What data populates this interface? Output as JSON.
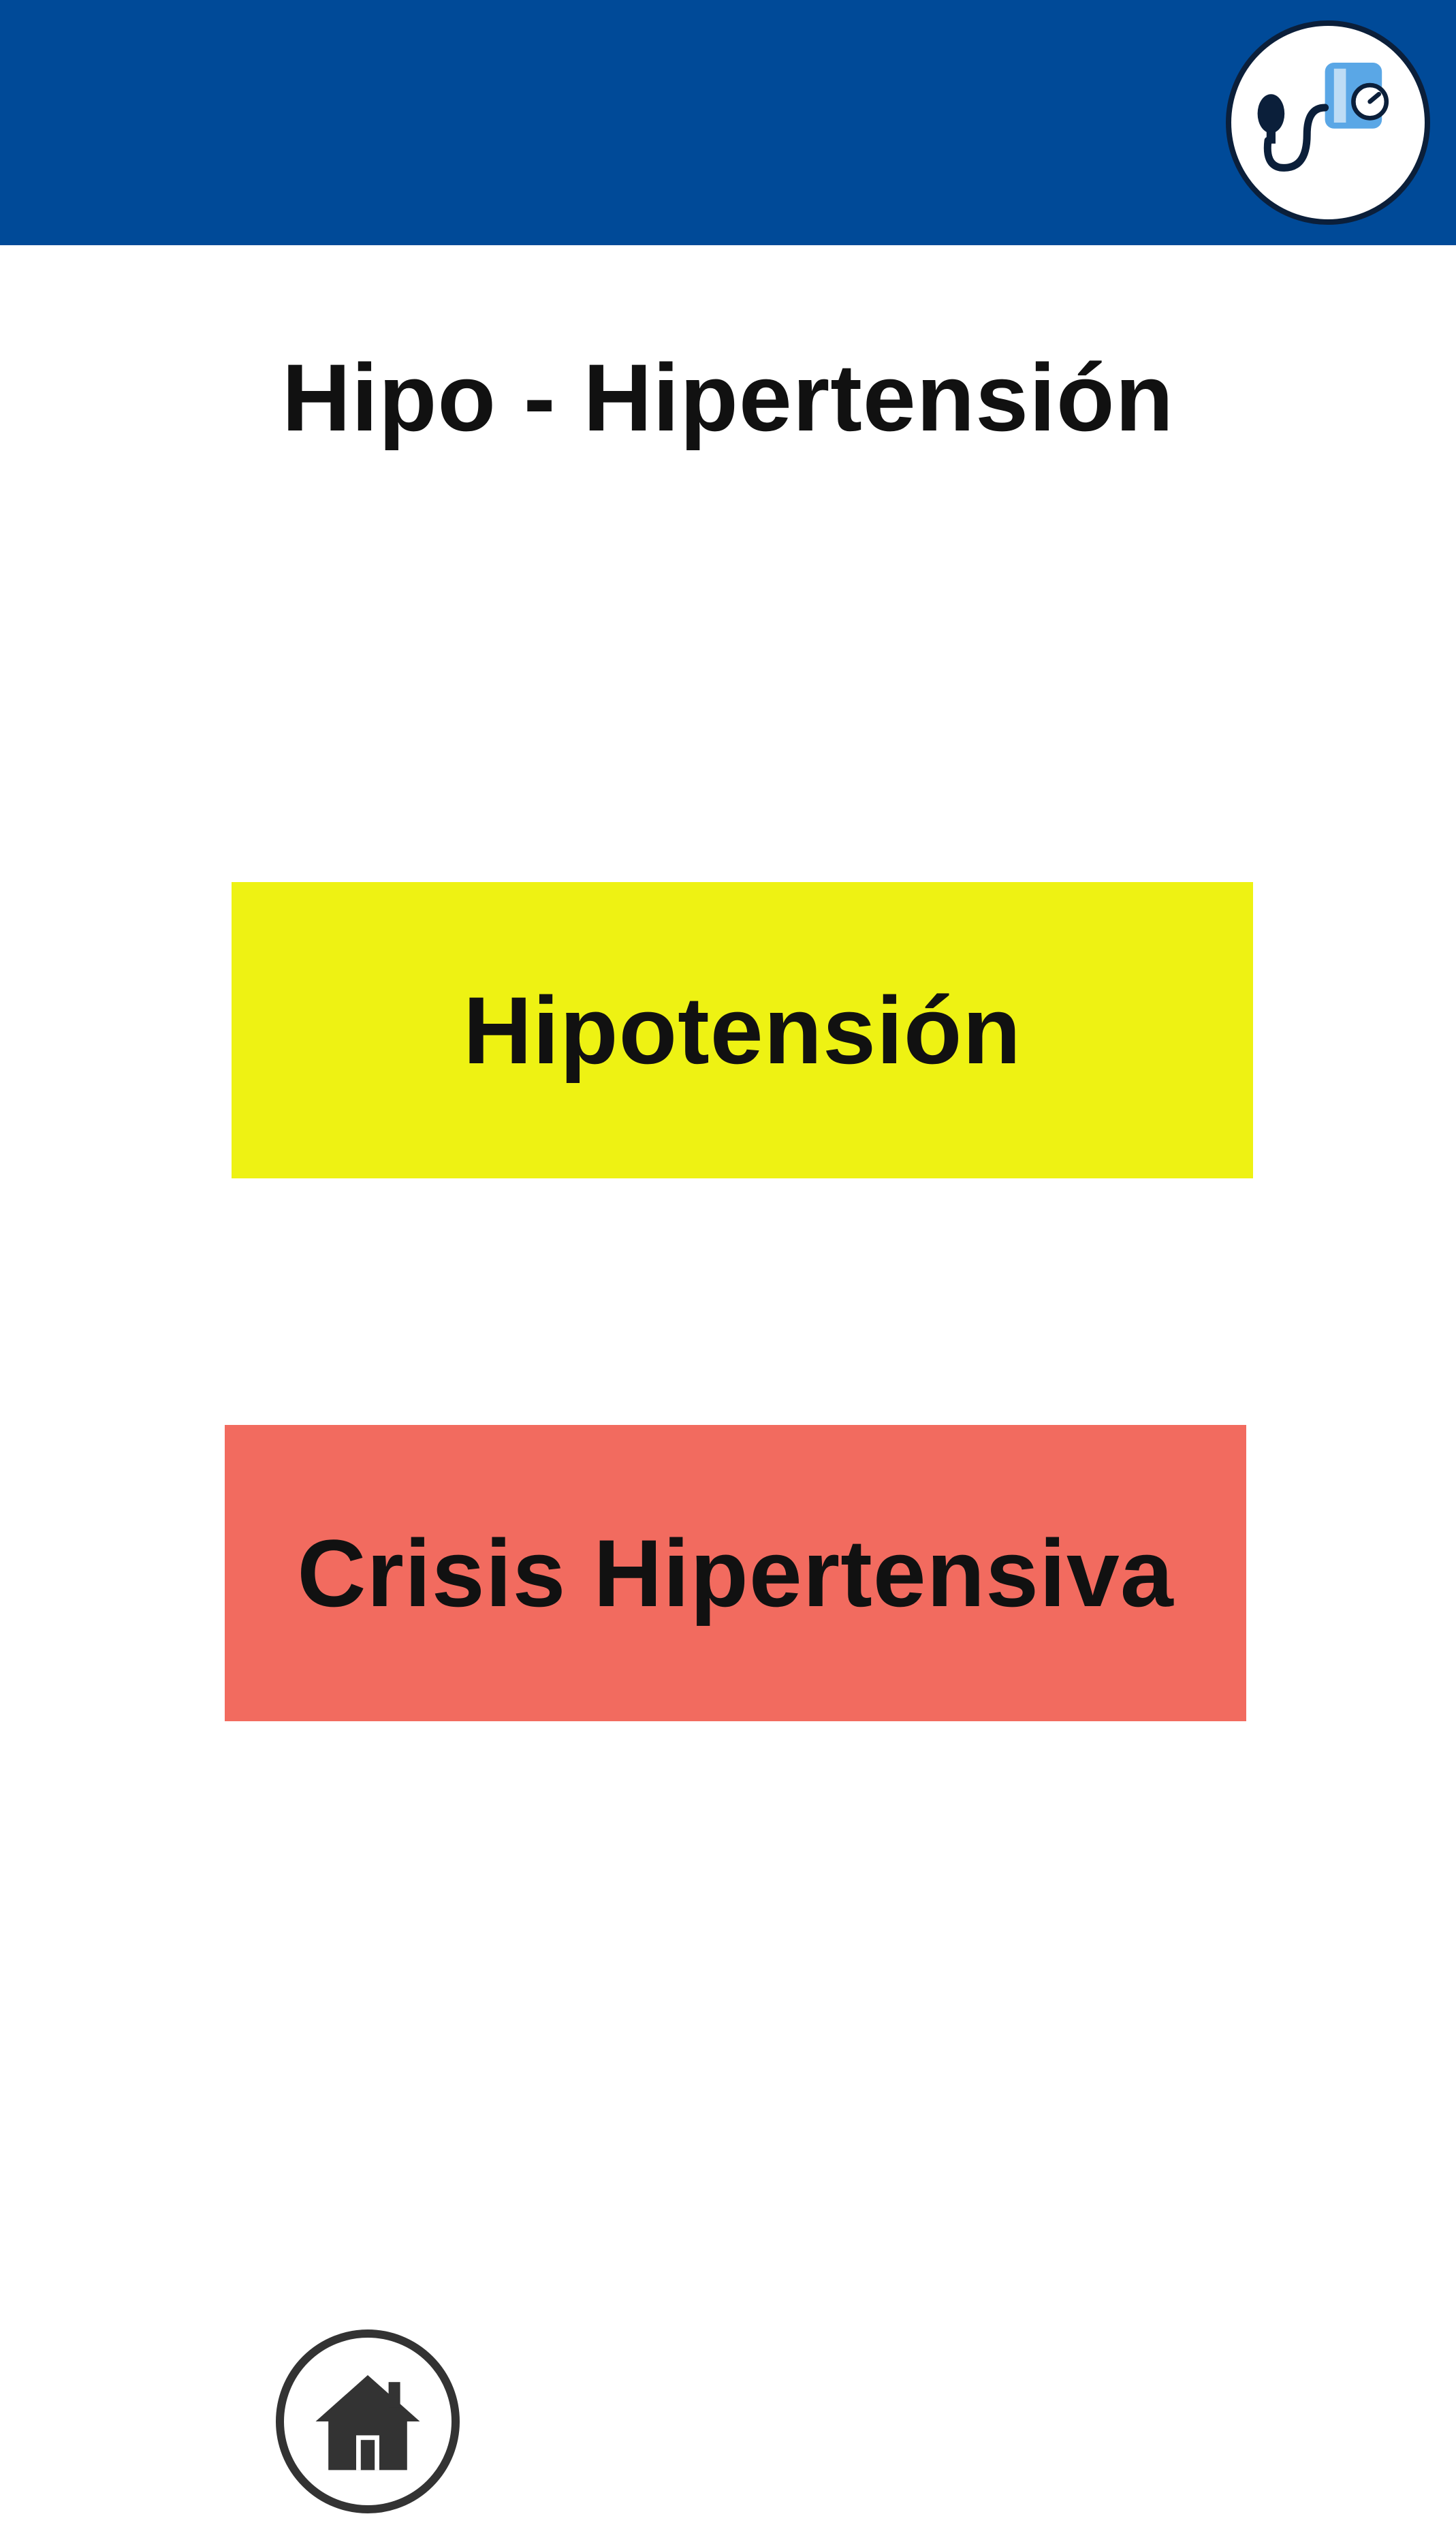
{
  "header": {
    "background_color": "#004a98",
    "logo_icon": "blood-pressure-monitor-icon"
  },
  "page": {
    "title": "Hipo - Hipertensión"
  },
  "options": [
    {
      "label": "Hipotensión",
      "color": "#eef213"
    },
    {
      "label": "Crisis Hipertensiva",
      "color": "#f26b5f"
    }
  ],
  "footer": {
    "home_icon": "home-icon"
  }
}
